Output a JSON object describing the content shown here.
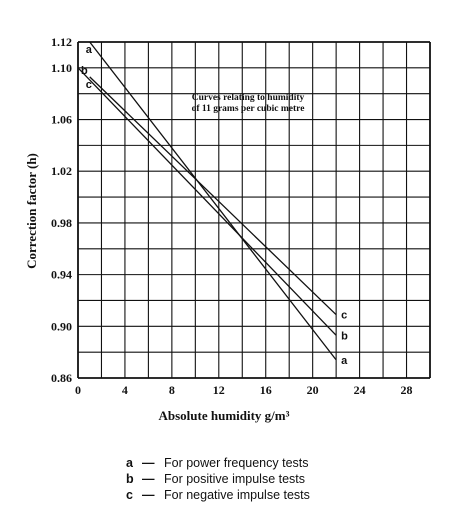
{
  "chart_data": {
    "type": "line",
    "title": "",
    "xlabel": "Absolute humidity g/m³",
    "ylabel": "Correction factor (h)",
    "xlim": [
      0,
      30
    ],
    "ylim": [
      0.86,
      1.12
    ],
    "x_ticks": [
      "0",
      "4",
      "8",
      "12",
      "16",
      "20",
      "24",
      "28"
    ],
    "y_ticks": [
      "1.12",
      "1.10",
      "1.06",
      "1.02",
      "0.98",
      "0.94",
      "0.90",
      "0.86"
    ],
    "grid": true,
    "annotation": [
      "Curves relating to humidity",
      "of 11 grams per cubic metre"
    ],
    "series": [
      {
        "name": "a",
        "x": [
          1,
          22
        ],
        "y": [
          1.12,
          0.874
        ]
      },
      {
        "name": "b",
        "x": [
          0,
          22
        ],
        "y": [
          1.1,
          0.893
        ]
      },
      {
        "name": "c",
        "x": [
          1,
          22
        ],
        "y": [
          1.093,
          0.909
        ]
      }
    ],
    "legend": [
      {
        "key": "a",
        "label": "For power frequency tests"
      },
      {
        "key": "b",
        "label": "For positive impulse tests"
      },
      {
        "key": "c",
        "label": "For negative impulse tests"
      }
    ]
  }
}
